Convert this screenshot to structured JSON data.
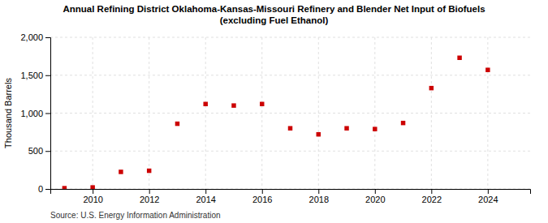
{
  "chart_data": {
    "type": "scatter",
    "title": "Annual Refining District Oklahoma-Kansas-Missouri Refinery and Blender Net Input of Biofuels\n(excluding Fuel Ethanol)",
    "ylabel": "Thousand Barrels",
    "source": "Source: U.S. Energy Information Administration",
    "x": [
      2009,
      2010,
      2011,
      2012,
      2013,
      2014,
      2015,
      2016,
      2017,
      2018,
      2019,
      2020,
      2021,
      2022,
      2023,
      2024
    ],
    "values": [
      10,
      20,
      225,
      240,
      860,
      1120,
      1100,
      1120,
      800,
      720,
      800,
      790,
      870,
      1330,
      1730,
      1570
    ],
    "color": "#cc0000",
    "marker": "square",
    "xlim": [
      2008.5,
      2025.5
    ],
    "ylim": [
      0,
      2000
    ],
    "xticks": [
      2010,
      2012,
      2014,
      2016,
      2018,
      2020,
      2022,
      2024
    ],
    "yticks": [
      0,
      500,
      {
        "value": 1000,
        "label": "1,000"
      },
      {
        "value": 1500,
        "label": "1,500"
      },
      {
        "value": 2000,
        "label": "2,000"
      }
    ],
    "grid": true
  }
}
